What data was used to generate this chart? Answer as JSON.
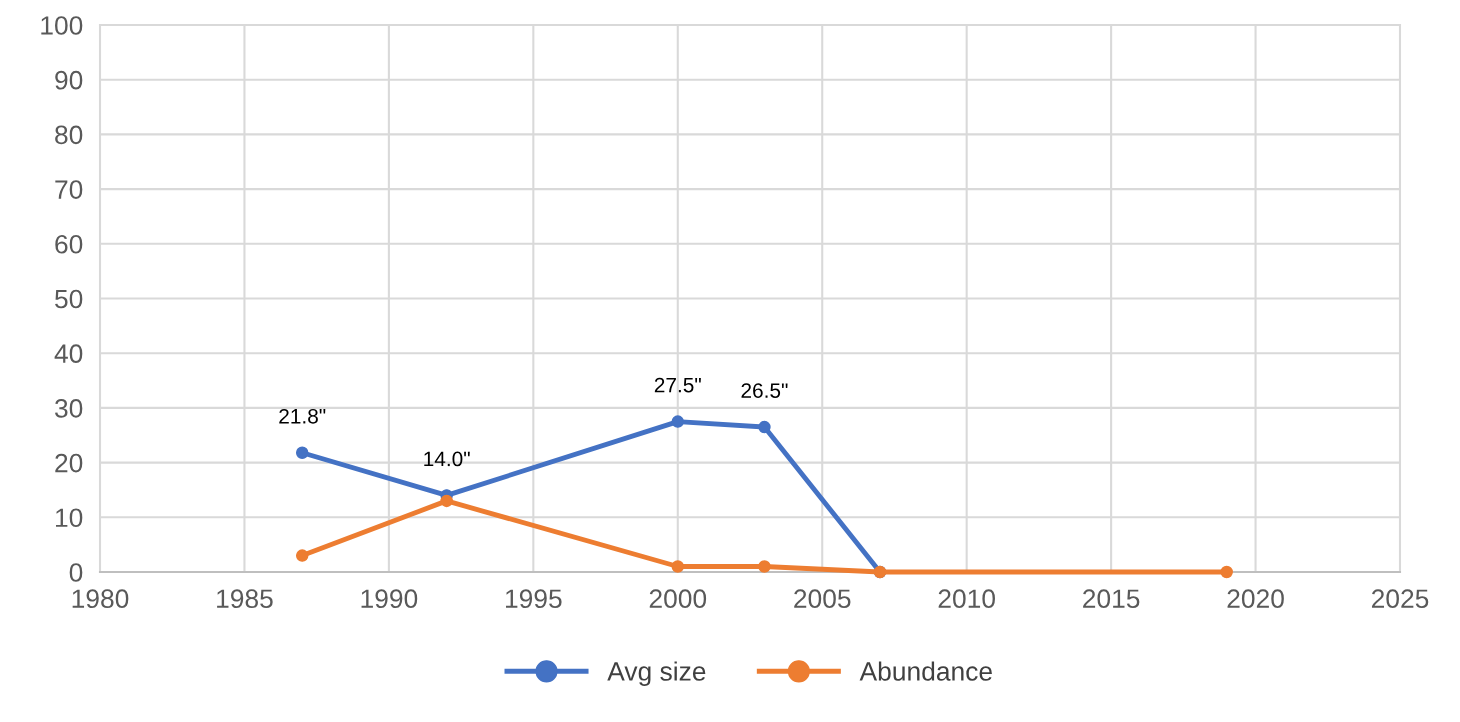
{
  "chart_data": {
    "type": "line",
    "x": [
      1987,
      1992,
      2000,
      2003,
      2007,
      2019
    ],
    "series": [
      {
        "name": "Avg size",
        "color": "#4472c4",
        "values": [
          21.8,
          14.0,
          27.5,
          26.5,
          0,
          null
        ],
        "value_labels": [
          "21.8\"",
          "14.0\"",
          "27.5\"",
          "26.5\"",
          null,
          null
        ]
      },
      {
        "name": "Abundance",
        "color": "#ed7d31",
        "values": [
          3,
          13,
          1,
          1,
          0,
          0
        ]
      }
    ],
    "xlim": [
      1980,
      2025
    ],
    "xticks": [
      1980,
      1985,
      1990,
      1995,
      2000,
      2005,
      2010,
      2015,
      2020,
      2025
    ],
    "ylim": [
      0,
      100
    ],
    "yticks": [
      0,
      10,
      20,
      30,
      40,
      50,
      60,
      70,
      80,
      90,
      100
    ],
    "grid": true,
    "legend": "bottom",
    "marker": "circle",
    "line_style": "solid"
  }
}
